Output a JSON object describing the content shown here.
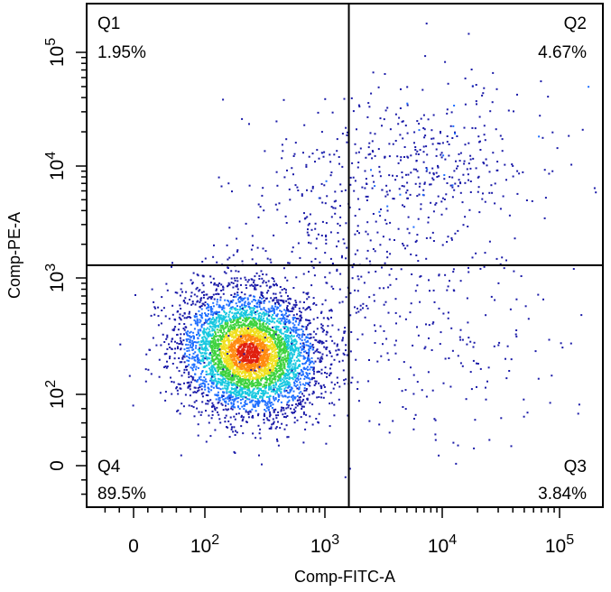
{
  "chart_data": {
    "type": "scatter",
    "subtype": "flow-cytometry-quadrant-density",
    "xlabel": "Comp-FITC-A",
    "ylabel": "Comp-PE-A",
    "x_scale": "biexponential",
    "y_scale": "biexponential",
    "x_ticks": [
      {
        "value": 0,
        "label": "0"
      },
      {
        "value": 100,
        "base": "10",
        "exp": "2"
      },
      {
        "value": 1000,
        "base": "10",
        "exp": "3"
      },
      {
        "value": 10000,
        "base": "10",
        "exp": "4"
      },
      {
        "value": 100000,
        "base": "10",
        "exp": "5"
      }
    ],
    "y_ticks": [
      {
        "value": 0,
        "label": "0"
      },
      {
        "value": 100,
        "base": "10",
        "exp": "2"
      },
      {
        "value": 1000,
        "base": "10",
        "exp": "3"
      },
      {
        "value": 10000,
        "base": "10",
        "exp": "4"
      },
      {
        "value": 100000,
        "base": "10",
        "exp": "5"
      }
    ],
    "gate": {
      "x": 1600,
      "y": 1300
    },
    "quadrants": [
      {
        "name": "Q1",
        "value": "1.95%",
        "position": "top-left"
      },
      {
        "name": "Q2",
        "value": "4.67%",
        "position": "top-right"
      },
      {
        "name": "Q3",
        "value": "3.84%",
        "position": "bottom-right"
      },
      {
        "name": "Q4",
        "value": "89.5%",
        "position": "bottom-left"
      }
    ],
    "populations": [
      {
        "quadrant": "Q4",
        "center_x": 230,
        "center_y": 230,
        "share": 0.895
      },
      {
        "quadrant": "Q2",
        "center_x": 9000,
        "center_y": 12000,
        "share": 0.0467
      },
      {
        "quadrant": "Q3",
        "center_x": 8000,
        "center_y": 300,
        "share": 0.0384
      },
      {
        "quadrant": "Q1",
        "center_x": 900,
        "center_y": 5000,
        "share": 0.0195
      }
    ],
    "density_colors": [
      "#1a1aa8",
      "#1f6fff",
      "#18c8e0",
      "#3fd33f",
      "#f0e020",
      "#ff8a10",
      "#e02010"
    ],
    "grid": false
  }
}
